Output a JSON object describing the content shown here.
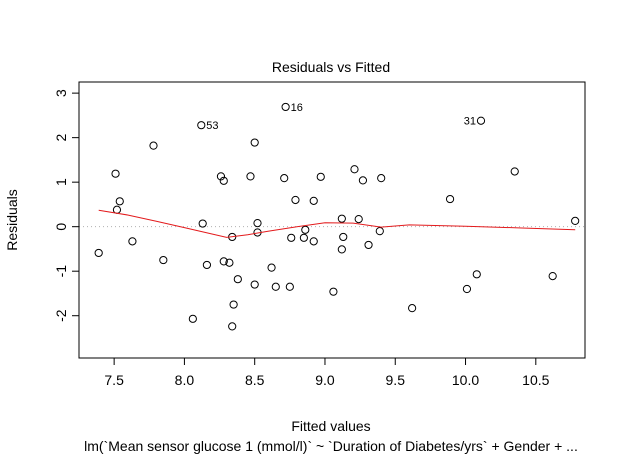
{
  "chart_data": {
    "type": "scatter",
    "title": "Residuals vs Fitted",
    "xlabel": "Fitted values",
    "ylabel": "Residuals",
    "subtitle": "lm(`Mean sensor glucose 1 (mmol/l)` ~ `Duration of Diabetes/yrs` + Gender + ...",
    "xlim": [
      7.25,
      10.85
    ],
    "ylim": [
      -2.95,
      3.25
    ],
    "x_ticks": [
      "7.5",
      "8.0",
      "8.5",
      "9.0",
      "9.5",
      "10.0",
      "10.5"
    ],
    "x_tick_values": [
      7.5,
      8.0,
      8.5,
      9.0,
      9.5,
      10.0,
      10.5
    ],
    "y_ticks": [
      "-2",
      "-1",
      "0",
      "1",
      "2",
      "3"
    ],
    "y_tick_values": [
      -2,
      -1,
      0,
      1,
      2,
      3
    ],
    "zero_line": true,
    "points": [
      {
        "x": 7.39,
        "y": -0.59
      },
      {
        "x": 7.51,
        "y": 1.19
      },
      {
        "x": 7.52,
        "y": 0.38
      },
      {
        "x": 7.54,
        "y": 0.57
      },
      {
        "x": 7.63,
        "y": -0.33
      },
      {
        "x": 7.78,
        "y": 1.82
      },
      {
        "x": 7.85,
        "y": -0.75
      },
      {
        "x": 8.06,
        "y": -2.07
      },
      {
        "x": 8.12,
        "y": 2.28
      },
      {
        "x": 8.13,
        "y": 0.07
      },
      {
        "x": 8.16,
        "y": -0.86
      },
      {
        "x": 8.26,
        "y": 1.13
      },
      {
        "x": 8.28,
        "y": 1.03
      },
      {
        "x": 8.28,
        "y": -0.78
      },
      {
        "x": 8.32,
        "y": -0.81
      },
      {
        "x": 8.34,
        "y": -0.23
      },
      {
        "x": 8.34,
        "y": -2.24
      },
      {
        "x": 8.35,
        "y": -1.75
      },
      {
        "x": 8.38,
        "y": -1.18
      },
      {
        "x": 8.47,
        "y": 1.13
      },
      {
        "x": 8.5,
        "y": 1.89
      },
      {
        "x": 8.5,
        "y": -1.3
      },
      {
        "x": 8.52,
        "y": 0.08
      },
      {
        "x": 8.52,
        "y": -0.13
      },
      {
        "x": 8.62,
        "y": -0.92
      },
      {
        "x": 8.65,
        "y": -1.35
      },
      {
        "x": 8.71,
        "y": 1.09
      },
      {
        "x": 8.72,
        "y": 2.69
      },
      {
        "x": 8.75,
        "y": -1.35
      },
      {
        "x": 8.76,
        "y": -0.25
      },
      {
        "x": 8.79,
        "y": 0.6
      },
      {
        "x": 8.85,
        "y": -0.25
      },
      {
        "x": 8.86,
        "y": -0.07
      },
      {
        "x": 8.92,
        "y": 0.58
      },
      {
        "x": 8.92,
        "y": -0.33
      },
      {
        "x": 8.97,
        "y": 1.12
      },
      {
        "x": 9.06,
        "y": -1.46
      },
      {
        "x": 9.12,
        "y": 0.18
      },
      {
        "x": 9.12,
        "y": -0.51
      },
      {
        "x": 9.13,
        "y": -0.23
      },
      {
        "x": 9.21,
        "y": 1.29
      },
      {
        "x": 9.24,
        "y": 0.17
      },
      {
        "x": 9.27,
        "y": 1.04
      },
      {
        "x": 9.31,
        "y": -0.41
      },
      {
        "x": 9.39,
        "y": -0.1
      },
      {
        "x": 9.4,
        "y": 1.09
      },
      {
        "x": 9.62,
        "y": -1.83
      },
      {
        "x": 9.89,
        "y": 0.62
      },
      {
        "x": 10.01,
        "y": -1.4
      },
      {
        "x": 10.08,
        "y": -1.07
      },
      {
        "x": 10.11,
        "y": 2.38
      },
      {
        "x": 10.35,
        "y": 1.24
      },
      {
        "x": 10.62,
        "y": -1.11
      },
      {
        "x": 10.78,
        "y": 0.13
      }
    ],
    "labeled_points": [
      {
        "label": "53",
        "x": 8.12,
        "y": 2.28,
        "side": "right"
      },
      {
        "label": "16",
        "x": 8.72,
        "y": 2.69,
        "side": "right"
      },
      {
        "label": "31",
        "x": 10.11,
        "y": 2.38,
        "side": "left"
      }
    ],
    "smooth_line": {
      "color": "#e31a1c",
      "points": [
        {
          "x": 7.39,
          "y": 0.37
        },
        {
          "x": 7.6,
          "y": 0.26
        },
        {
          "x": 7.8,
          "y": 0.12
        },
        {
          "x": 8.0,
          "y": -0.02
        },
        {
          "x": 8.15,
          "y": -0.13
        },
        {
          "x": 8.3,
          "y": -0.24
        },
        {
          "x": 8.45,
          "y": -0.18
        },
        {
          "x": 8.6,
          "y": -0.1
        },
        {
          "x": 8.8,
          "y": 0.0
        },
        {
          "x": 9.0,
          "y": 0.09
        },
        {
          "x": 9.2,
          "y": 0.08
        },
        {
          "x": 9.4,
          "y": -0.01
        },
        {
          "x": 9.6,
          "y": 0.04
        },
        {
          "x": 10.0,
          "y": 0.01
        },
        {
          "x": 10.4,
          "y": -0.03
        },
        {
          "x": 10.78,
          "y": -0.07
        }
      ]
    }
  }
}
